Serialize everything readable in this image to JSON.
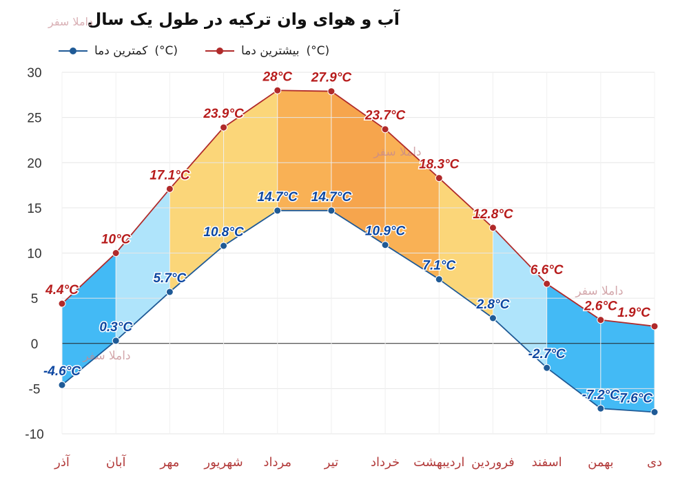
{
  "header": {
    "title": "آب و هوای وان ترکیه در طول یک سال",
    "brand": "داملا سفر"
  },
  "legend": {
    "min_label": "کمترین دما",
    "max_label": "بیشترین دما",
    "unit": "(°C)"
  },
  "watermarks": [
    "داملا سفر",
    "داملا سفر",
    "داملا سفر"
  ],
  "colors": {
    "max_line": "#b02a2a",
    "min_line": "#1f5a96",
    "max_label": "#b71c1c",
    "min_label": "#0d47a1",
    "cold_fill": "#2fb2f4",
    "cool_fill": "#a6e1fb",
    "mild_fill": "#fbd26a",
    "warm_fill": "#f8a942",
    "hot_fill": "#f59b3a"
  },
  "chart_data": {
    "type": "area",
    "categories": [
      "دی",
      "بهمن",
      "اسفند",
      "فروردین",
      "اردیبهشت",
      "خرداد",
      "تیر",
      "مرداد",
      "شهریور",
      "مهر",
      "آبان",
      "آذر"
    ],
    "series": [
      {
        "name": "بیشترین دما",
        "values": [
          1.9,
          2.6,
          6.6,
          12.8,
          18.3,
          23.7,
          27.9,
          28,
          23.9,
          17.1,
          10,
          4.4
        ],
        "labels": [
          "1.9°C",
          "2.6°C",
          "6.6°C",
          "12.8°C",
          "18.3°C",
          "23.7°C",
          "27.9°C",
          "28°C",
          "23.9°C",
          "17.1°C",
          "10°C",
          "4.4°C"
        ]
      },
      {
        "name": "کمترین دما",
        "values": [
          -7.6,
          -7.2,
          -2.7,
          2.8,
          7.1,
          10.9,
          14.7,
          14.7,
          10.8,
          5.7,
          0.3,
          -4.6
        ],
        "labels": [
          "-7.6°C",
          "-7.2°C",
          "-2.7°C",
          "2.8°C",
          "7.1°C",
          "10.9°C",
          "14.7°C",
          "14.7°C",
          "10.8°C",
          "5.7°C",
          "0.3°C",
          "-4.6°C"
        ]
      }
    ],
    "yticks": [
      "30",
      "25",
      "20",
      "15",
      "10",
      "5",
      "0",
      "-5",
      "-10"
    ],
    "ylim": [
      -10,
      30
    ],
    "x_direction": "right-to-left",
    "grid": true,
    "legend_position": "top-left"
  }
}
